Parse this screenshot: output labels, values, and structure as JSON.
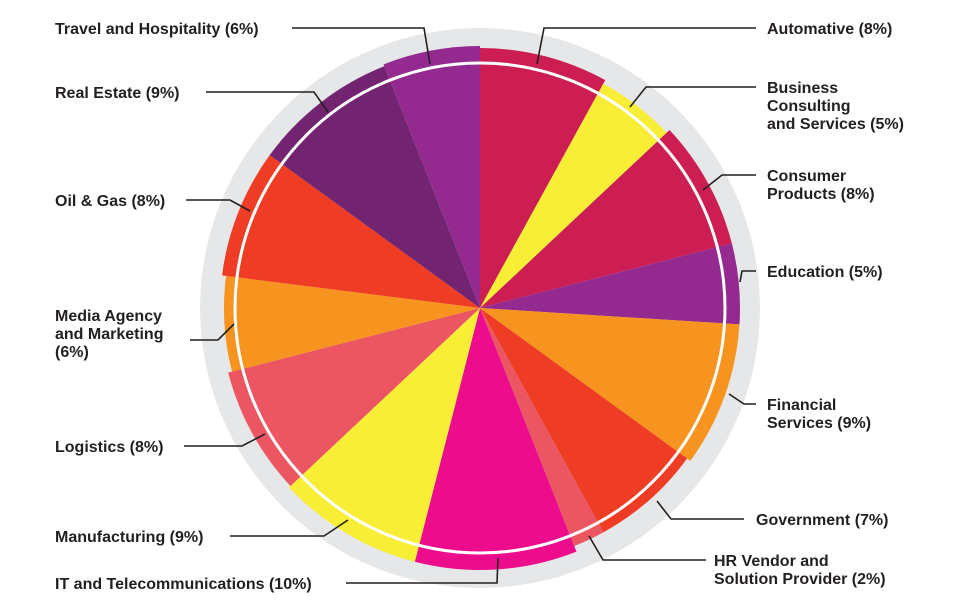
{
  "chart_data": {
    "type": "pie",
    "title": "",
    "slices": [
      {
        "label_lines": [
          "Automative (8%)"
        ],
        "value": 8,
        "color": "#cc1e52"
      },
      {
        "label_lines": [
          "Business",
          "Consulting",
          "and Services (5%)"
        ],
        "value": 5,
        "color": "#f8ee36"
      },
      {
        "label_lines": [
          "Consumer",
          "Products (8%)"
        ],
        "value": 8,
        "color": "#cc1e52"
      },
      {
        "label_lines": [
          "Education (5%)"
        ],
        "value": 5,
        "color": "#942a90"
      },
      {
        "label_lines": [
          "Financial",
          "Services (9%)"
        ],
        "value": 9,
        "color": "#f7941f"
      },
      {
        "label_lines": [
          "Government (7%)"
        ],
        "value": 7,
        "color": "#ef3d25"
      },
      {
        "label_lines": [
          "HR Vendor and",
          "Solution Provider (2%)"
        ],
        "value": 2,
        "color": "#eb5662"
      },
      {
        "label_lines": [
          "IT and Telecommunications (10%)"
        ],
        "value": 10,
        "color": "#ec0c8c"
      },
      {
        "label_lines": [
          "Manufacturing (9%)"
        ],
        "value": 9,
        "color": "#f8ee36"
      },
      {
        "label_lines": [
          "Logistics (8%)"
        ],
        "value": 8,
        "color": "#eb5662"
      },
      {
        "label_lines": [
          "Media Agency",
          "and Marketing",
          "(6%)"
        ],
        "value": 6,
        "color": "#f7941f"
      },
      {
        "label_lines": [
          "Oil & Gas (8%)"
        ],
        "value": 8,
        "color": "#ef3d25"
      },
      {
        "label_lines": [
          "Real Estate (9%)"
        ],
        "value": 9,
        "color": "#722470"
      },
      {
        "label_lines": [
          "Travel and Hospitality (6%)"
        ],
        "value": 6,
        "color": "#942a90"
      }
    ]
  }
}
